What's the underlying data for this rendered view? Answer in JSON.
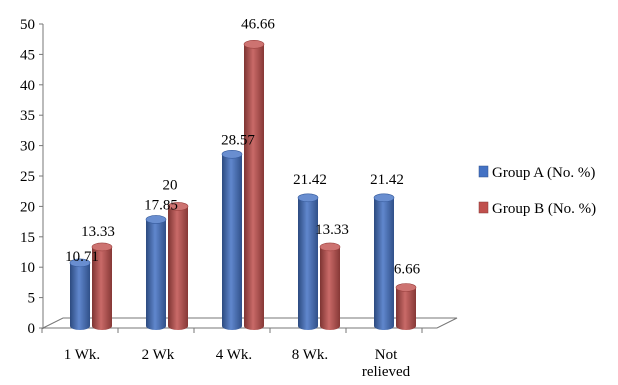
{
  "chart_data": {
    "type": "bar",
    "categories": [
      "1 Wk.",
      "2 Wk",
      "4 Wk.",
      "8 Wk.",
      "Not relieved"
    ],
    "category_lines": [
      [
        "1 Wk."
      ],
      [
        "2 Wk"
      ],
      [
        "4 Wk."
      ],
      [
        "8 Wk."
      ],
      [
        "Not",
        "relieved"
      ]
    ],
    "series": [
      {
        "name": "Group A (No. %)",
        "color": "#4472C4",
        "values": [
          10.71,
          17.85,
          28.57,
          21.42,
          21.42
        ],
        "labels": [
          "10.71",
          "17.85",
          "28.57",
          "21.42",
          "21.42"
        ]
      },
      {
        "name": "Group B (No. %)",
        "color": "#C0504D",
        "values": [
          13.33,
          20,
          46.66,
          13.33,
          6.66
        ],
        "labels": [
          "13.33",
          "20",
          "46.66",
          "13.33",
          "6.66"
        ]
      }
    ],
    "ylim": [
      0,
      50
    ],
    "yticks": [
      "0",
      "5",
      "10",
      "15",
      "20",
      "25",
      "30",
      "35",
      "40",
      "45",
      "50"
    ],
    "grid": false,
    "legend": "right",
    "style": "3d-cylinder"
  }
}
